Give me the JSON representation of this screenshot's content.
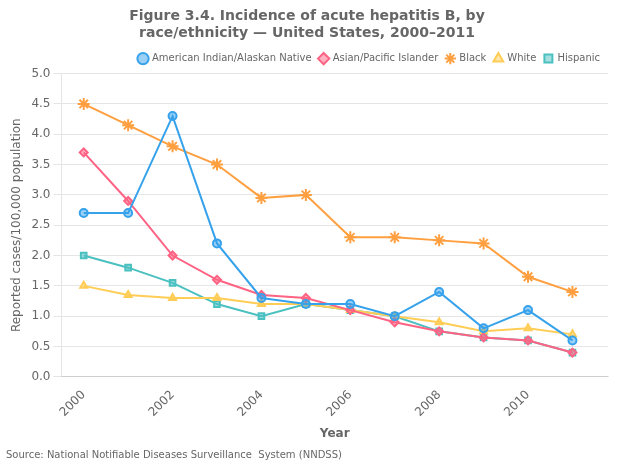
{
  "chart_data": {
    "type": "line",
    "title": [
      "Figure 3.4. Incidence of acute hepatitis B, by",
      "race/ethnicity — United States, 2000–2011"
    ],
    "xlabel": "Year",
    "ylabel": "Reported cases/100,000 population",
    "annotations": [
      "Source: National Notifiable Diseases Surveillance  System (NNDSS)"
    ],
    "x": [
      2000,
      2001,
      2002,
      2003,
      2004,
      2005,
      2006,
      2007,
      2008,
      2009,
      2010,
      2011
    ],
    "series": [
      {
        "name": "American Indian/Alaskan Native",
        "marker": "circle",
        "values": [
          2.7,
          2.7,
          4.3,
          2.2,
          1.3,
          1.2,
          1.2,
          1.0,
          1.4,
          0.8,
          1.1,
          0.6
        ]
      },
      {
        "name": "Asian/Pacific Islander",
        "marker": "diamond",
        "values": [
          3.7,
          2.9,
          2.0,
          1.6,
          1.35,
          1.3,
          1.1,
          0.9,
          0.75,
          0.65,
          0.6,
          0.4
        ]
      },
      {
        "name": "Black",
        "marker": "star",
        "values": [
          4.5,
          4.15,
          3.8,
          3.5,
          2.95,
          3.0,
          2.3,
          2.3,
          2.25,
          2.2,
          1.65,
          1.4
        ]
      },
      {
        "name": "White",
        "marker": "triangle",
        "values": [
          1.5,
          1.35,
          1.3,
          1.3,
          1.2,
          1.2,
          1.1,
          1.0,
          0.9,
          0.75,
          0.8,
          0.7
        ]
      },
      {
        "name": "Hispanic",
        "marker": "square",
        "values": [
          2.0,
          1.8,
          1.55,
          1.2,
          1.0,
          1.2,
          1.1,
          1.0,
          0.75,
          0.65,
          0.6,
          0.4
        ]
      }
    ],
    "xlim": [
      1999.5,
      2011.8
    ],
    "xticks": [
      2000,
      2002,
      2004,
      2006,
      2008,
      2010
    ],
    "ylim": [
      0,
      5
    ],
    "yticks": [
      {
        "value": 0,
        "label": "0.0"
      },
      0.5,
      {
        "value": 1.0,
        "label": "1.0"
      },
      1.5,
      {
        "value": 2.0,
        "label": "2.0"
      },
      2.5,
      {
        "value": 3.0,
        "label": "3.0"
      },
      3.5,
      {
        "value": 4.0,
        "label": "4.0"
      },
      4.5,
      {
        "value": 5.0,
        "label": "5.0"
      }
    ],
    "grid": "y",
    "legend": "upper right"
  }
}
